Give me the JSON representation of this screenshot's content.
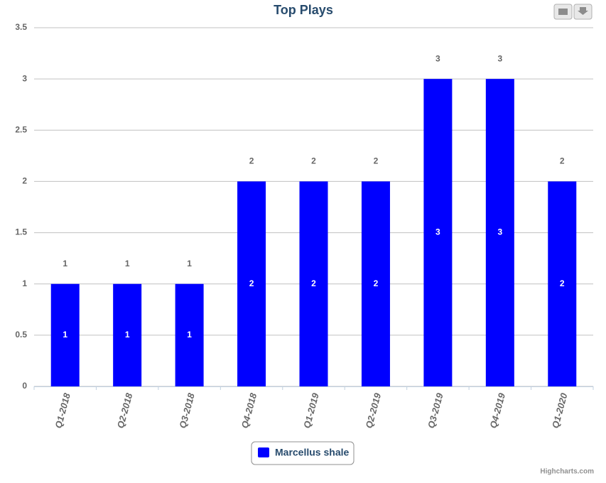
{
  "chart_data": {
    "type": "bar",
    "title": "Top Plays",
    "categories": [
      "Q1-2018",
      "Q2-2018",
      "Q3-2018",
      "Q4-2018",
      "Q1-2019",
      "Q2-2019",
      "Q3-2019",
      "Q4-2019",
      "Q1-2020"
    ],
    "series": [
      {
        "name": "Marcellus shale",
        "color": "#0000ff",
        "values": [
          1,
          1,
          1,
          2,
          2,
          2,
          3,
          3,
          2
        ]
      }
    ],
    "ylim": [
      0,
      3.5
    ],
    "yticks": [
      0,
      0.5,
      1,
      1.5,
      2,
      2.5,
      3,
      3.5
    ],
    "grid": true,
    "legend": "bottom",
    "credits": "Highcharts.com"
  }
}
